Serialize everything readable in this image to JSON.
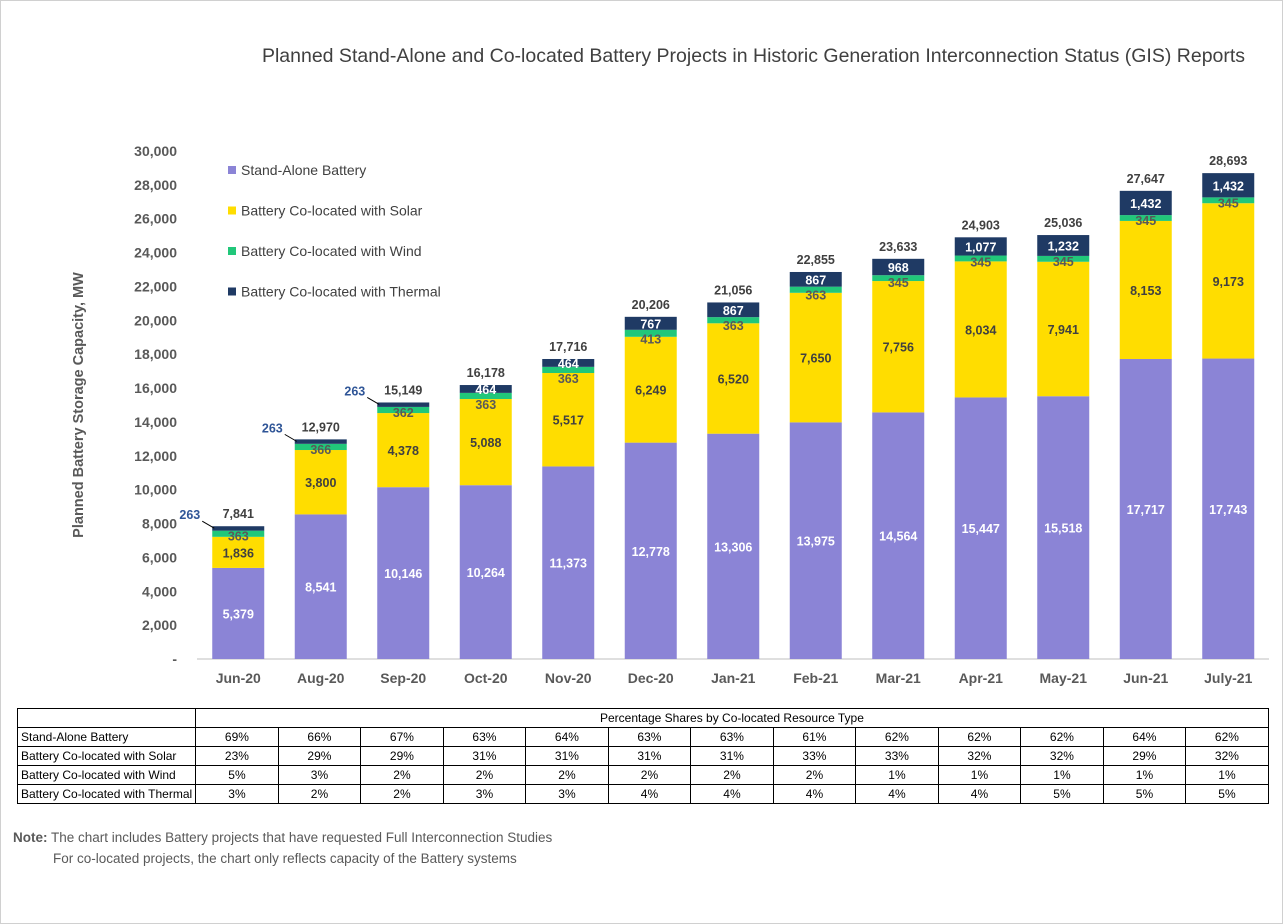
{
  "chart_data": {
    "type": "bar",
    "stacked": true,
    "title": "Planned Stand-Alone and Co-located Battery Projects in Historic Generation Interconnection Status (GIS) Reports",
    "ylabel": "Planned Battery Storage Capacity, MW",
    "xlabel": "",
    "ylim": [
      0,
      30000
    ],
    "yticks": [
      "-",
      "2,000",
      "4,000",
      "6,000",
      "8,000",
      "10,000",
      "12,000",
      "14,000",
      "16,000",
      "18,000",
      "20,000",
      "22,000",
      "24,000",
      "26,000",
      "28,000",
      "30,000"
    ],
    "grid": false,
    "legend_position": "top-left",
    "categories": [
      "Jun-20",
      "Aug-20",
      "Sep-20",
      "Oct-20",
      "Nov-20",
      "Dec-20",
      "Jan-21",
      "Feb-21",
      "Mar-21",
      "Apr-21",
      "May-21",
      "Jun-21",
      "July-21"
    ],
    "series": [
      {
        "name": "Stand-Alone Battery",
        "color": "#8b84d6",
        "values": [
          5379,
          8541,
          10146,
          10264,
          11373,
          12778,
          13306,
          13975,
          14564,
          15447,
          15518,
          17717,
          17743
        ]
      },
      {
        "name": "Battery Co-located with Solar",
        "color": "#ffdd00",
        "values": [
          1836,
          3800,
          4378,
          5088,
          5517,
          6249,
          6520,
          7650,
          7756,
          8034,
          7941,
          8153,
          9173
        ]
      },
      {
        "name": "Battery Co-located with Wind",
        "color": "#21c77a",
        "values": [
          363,
          366,
          362,
          363,
          363,
          413,
          363,
          363,
          345,
          345,
          345,
          345,
          345
        ]
      },
      {
        "name": "Battery Co-located with Thermal",
        "color": "#1f3a64",
        "values": [
          263,
          263,
          263,
          464,
          464,
          767,
          867,
          867,
          968,
          1077,
          1232,
          1432,
          1432
        ]
      }
    ],
    "totals": [
      7841,
      12970,
      15149,
      16178,
      17716,
      20206,
      21056,
      22855,
      23633,
      24903,
      25036,
      27647,
      28693
    ]
  },
  "table": {
    "header": "Percentage Shares by Co-located Resource Type",
    "rows": [
      {
        "label": "Stand-Alone Battery",
        "values": [
          "69%",
          "66%",
          "67%",
          "63%",
          "64%",
          "63%",
          "63%",
          "61%",
          "62%",
          "62%",
          "62%",
          "64%",
          "62%"
        ]
      },
      {
        "label": "Battery Co-located with Solar",
        "values": [
          "23%",
          "29%",
          "29%",
          "31%",
          "31%",
          "31%",
          "31%",
          "33%",
          "33%",
          "32%",
          "32%",
          "29%",
          "32%"
        ]
      },
      {
        "label": "Battery Co-located with Wind",
        "values": [
          "5%",
          "3%",
          "2%",
          "2%",
          "2%",
          "2%",
          "2%",
          "2%",
          "1%",
          "1%",
          "1%",
          "1%",
          "1%"
        ]
      },
      {
        "label": "Battery Co-located with Thermal",
        "values": [
          "3%",
          "2%",
          "2%",
          "3%",
          "3%",
          "4%",
          "4%",
          "4%",
          "4%",
          "4%",
          "5%",
          "5%",
          "5%"
        ]
      }
    ]
  },
  "note": {
    "label": "Note:",
    "line1": "The chart includes Battery projects that have requested Full Interconnection Studies",
    "line2": "For co-located projects, the chart only reflects capacity of the Battery systems"
  }
}
